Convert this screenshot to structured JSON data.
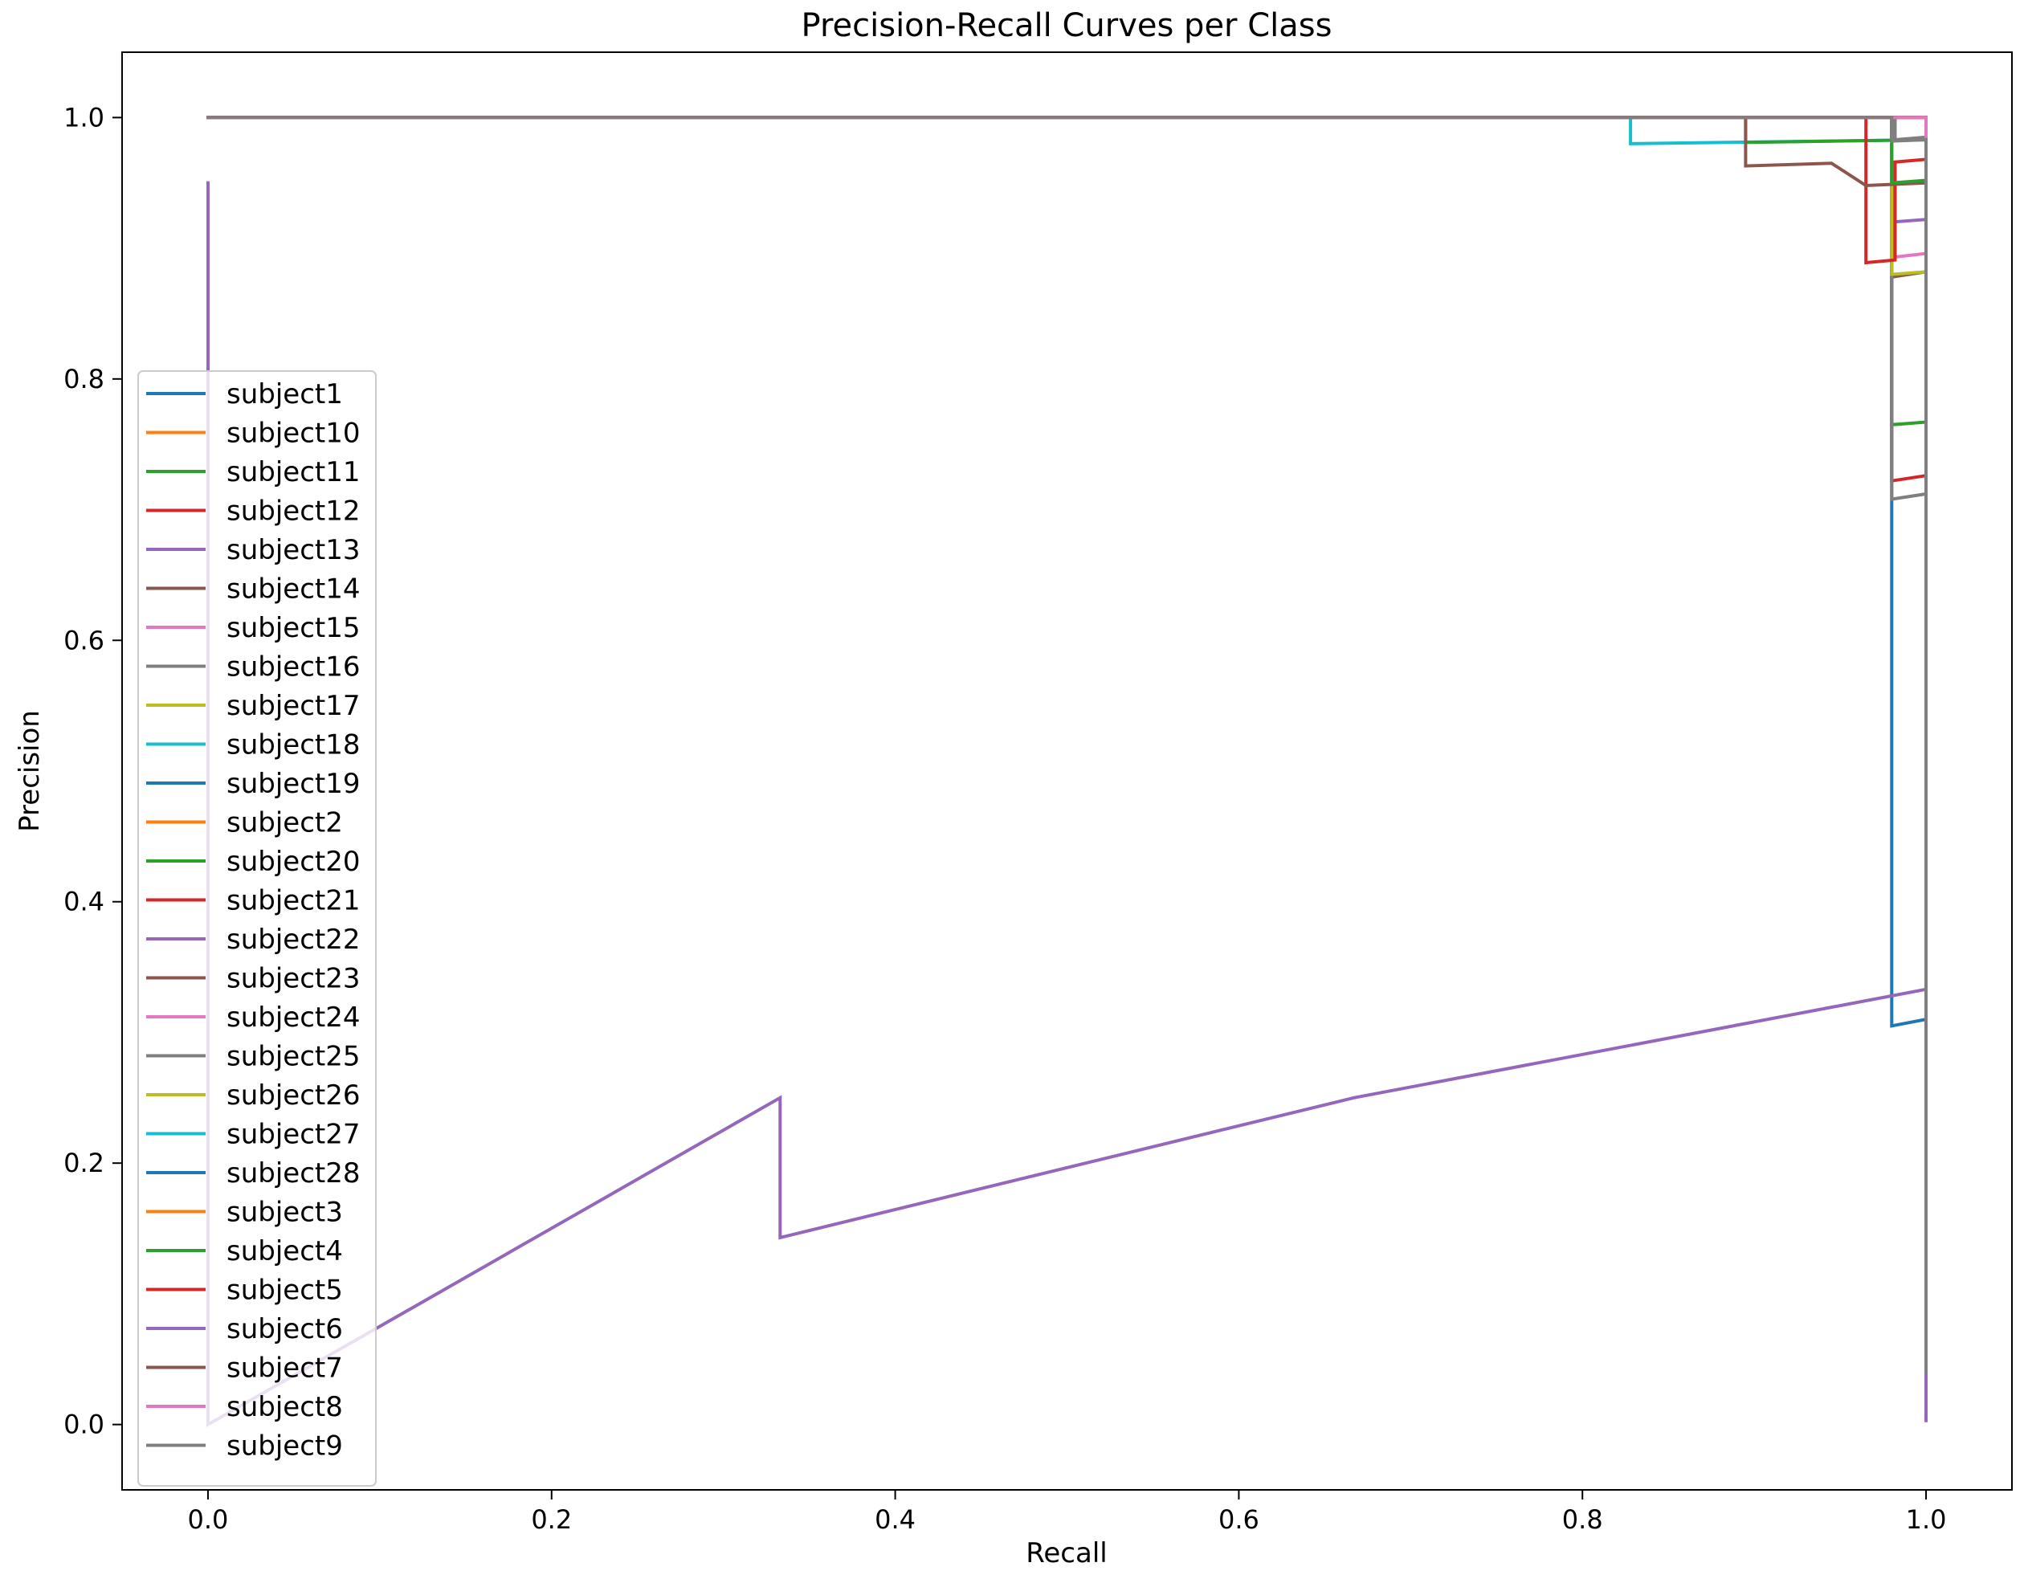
{
  "chart_data": {
    "type": "line",
    "title": "Precision-Recall Curves per Class",
    "xlabel": "Recall",
    "ylabel": "Precision",
    "xlim": [
      -0.05,
      1.05
    ],
    "ylim": [
      -0.05,
      1.05
    ],
    "x_ticks": [
      "0.0",
      "0.2",
      "0.4",
      "0.6",
      "0.8",
      "1.0"
    ],
    "y_ticks": [
      "0.0",
      "0.2",
      "0.4",
      "0.6",
      "0.8",
      "1.0"
    ],
    "grid": false,
    "legend_position": "center-left",
    "series": [
      {
        "name": "subject1",
        "color": "#1f77b4",
        "points": [
          [
            0,
            1
          ],
          [
            0.98,
            1
          ],
          [
            0.98,
            0.72
          ],
          [
            0.98,
            0.305
          ],
          [
            1,
            0.31
          ],
          [
            1,
            0.04
          ]
        ]
      },
      {
        "name": "subject10",
        "color": "#ff7f0e",
        "points": [
          [
            0,
            1
          ],
          [
            1,
            1
          ],
          [
            1,
            0.04
          ]
        ]
      },
      {
        "name": "subject11",
        "color": "#2ca02c",
        "points": [
          [
            0,
            1
          ],
          [
            0.98,
            1
          ],
          [
            0.98,
            0.765
          ],
          [
            1,
            0.767
          ],
          [
            1,
            0.04
          ]
        ]
      },
      {
        "name": "subject12",
        "color": "#d62728",
        "points": [
          [
            0,
            1
          ],
          [
            0.98,
            1
          ],
          [
            0.98,
            0.722
          ],
          [
            1,
            0.726
          ],
          [
            1,
            0.04
          ]
        ]
      },
      {
        "name": "subject13",
        "color": "#9467bd",
        "points": [
          [
            0,
            1
          ],
          [
            0.98,
            1
          ],
          [
            0.98,
            0.92
          ],
          [
            1,
            0.922
          ],
          [
            1,
            0.04
          ]
        ]
      },
      {
        "name": "subject14",
        "color": "#8c564b",
        "points": [
          [
            0,
            1
          ],
          [
            0.98,
            1
          ],
          [
            0.98,
            0.878
          ],
          [
            1,
            0.882
          ],
          [
            1,
            0.04
          ]
        ]
      },
      {
        "name": "subject15",
        "color": "#e377c2",
        "points": [
          [
            0,
            1
          ],
          [
            0.98,
            1
          ],
          [
            0.98,
            0.893
          ],
          [
            1,
            0.896
          ],
          [
            1,
            0.04
          ]
        ]
      },
      {
        "name": "subject16",
        "color": "#7f7f7f",
        "points": [
          [
            0,
            1
          ],
          [
            0.98,
            1
          ],
          [
            0.98,
            0.708
          ],
          [
            1,
            0.712
          ],
          [
            1,
            0.04
          ]
        ]
      },
      {
        "name": "subject17",
        "color": "#bcbd22",
        "points": [
          [
            0,
            1
          ],
          [
            0.98,
            1
          ],
          [
            0.98,
            0.88
          ],
          [
            1,
            0.882
          ],
          [
            1,
            0.04
          ]
        ]
      },
      {
        "name": "subject18",
        "color": "#17becf",
        "points": [
          [
            0,
            1
          ],
          [
            0.828,
            1
          ],
          [
            0.828,
            0.98
          ],
          [
            1,
            0.983
          ],
          [
            1,
            0.04
          ]
        ]
      },
      {
        "name": "subject19",
        "color": "#1f77b4",
        "points": [
          [
            0,
            1
          ],
          [
            1,
            1
          ],
          [
            1,
            0.04
          ]
        ]
      },
      {
        "name": "subject2",
        "color": "#ff7f0e",
        "points": [
          [
            0,
            1
          ],
          [
            1,
            1
          ],
          [
            1,
            0.04
          ]
        ]
      },
      {
        "name": "subject20",
        "color": "#2ca02c",
        "points": [
          [
            0,
            1
          ],
          [
            0.895,
            1
          ],
          [
            0.895,
            0.981
          ],
          [
            1,
            0.983
          ],
          [
            1,
            0.04
          ]
        ]
      },
      {
        "name": "subject21",
        "color": "#d62728",
        "points": [
          [
            0,
            1
          ],
          [
            0.965,
            1
          ],
          [
            0.965,
            0.889
          ],
          [
            0.982,
            0.891
          ],
          [
            0.982,
            0.966
          ],
          [
            1,
            0.968
          ],
          [
            1,
            0.04
          ]
        ]
      },
      {
        "name": "subject22",
        "color": "#9467bd",
        "points": [
          [
            0,
            1
          ],
          [
            1,
            1
          ],
          [
            1,
            0.04
          ]
        ]
      },
      {
        "name": "subject23",
        "color": "#8c564b",
        "points": [
          [
            0,
            1
          ],
          [
            0.895,
            1
          ],
          [
            0.895,
            0.963
          ],
          [
            0.945,
            0.965
          ],
          [
            0.965,
            0.948
          ],
          [
            1,
            0.95
          ],
          [
            1,
            0.04
          ]
        ]
      },
      {
        "name": "subject24",
        "color": "#e377c2",
        "points": [
          [
            0,
            1
          ],
          [
            1,
            1
          ],
          [
            1,
            0.04
          ]
        ]
      },
      {
        "name": "subject25",
        "color": "#7f7f7f",
        "points": [
          [
            0,
            1
          ],
          [
            0.982,
            1
          ],
          [
            0.982,
            0.983
          ],
          [
            1,
            0.985
          ],
          [
            1,
            0.04
          ]
        ]
      },
      {
        "name": "subject26",
        "color": "#bcbd22",
        "points": [
          [
            0,
            1
          ],
          [
            1,
            1
          ],
          [
            1,
            0.04
          ]
        ]
      },
      {
        "name": "subject27",
        "color": "#17becf",
        "points": [
          [
            0,
            1
          ],
          [
            1,
            1
          ],
          [
            1,
            0.04
          ]
        ]
      },
      {
        "name": "subject28",
        "color": "#1f77b4",
        "points": [
          [
            0,
            1
          ],
          [
            1,
            1
          ],
          [
            1,
            0.04
          ]
        ]
      },
      {
        "name": "subject3",
        "color": "#ff7f0e",
        "points": [
          [
            0,
            1
          ],
          [
            1,
            1
          ],
          [
            1,
            0.04
          ]
        ]
      },
      {
        "name": "subject4",
        "color": "#2ca02c",
        "points": [
          [
            0,
            1
          ],
          [
            0.98,
            1
          ],
          [
            0.98,
            0.95
          ],
          [
            1,
            0.952
          ],
          [
            1,
            0.04
          ]
        ]
      },
      {
        "name": "subject5",
        "color": "#d62728",
        "points": [
          [
            0,
            1
          ],
          [
            1,
            1
          ],
          [
            1,
            0.04
          ]
        ]
      },
      {
        "name": "subject6",
        "color": "#9467bd",
        "points": [
          [
            0,
            0.95
          ],
          [
            0,
            0
          ],
          [
            0.333,
            0.25
          ],
          [
            0.333,
            0.143
          ],
          [
            0.667,
            0.25
          ],
          [
            1,
            0.333
          ],
          [
            1,
            0.003
          ]
        ]
      },
      {
        "name": "subject7",
        "color": "#8c564b",
        "points": [
          [
            0,
            1
          ],
          [
            1,
            1
          ],
          [
            1,
            0.04
          ]
        ]
      },
      {
        "name": "subject8",
        "color": "#e377c2",
        "points": [
          [
            0,
            1
          ],
          [
            1,
            1
          ],
          [
            1,
            0.04
          ]
        ]
      },
      {
        "name": "subject9",
        "color": "#7f7f7f",
        "points": [
          [
            0,
            1
          ],
          [
            0.98,
            1
          ],
          [
            0.98,
            0.982
          ],
          [
            1,
            0.983
          ],
          [
            1,
            0.04
          ]
        ]
      }
    ]
  }
}
